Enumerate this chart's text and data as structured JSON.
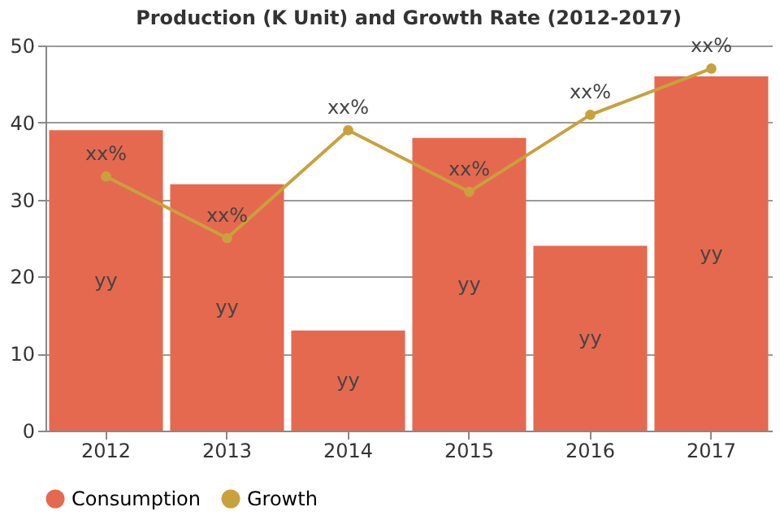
{
  "chart_data": {
    "type": "bar",
    "title": "Production (K Unit) and Growth Rate (2012-2017)",
    "categories": [
      "2012",
      "2013",
      "2014",
      "2015",
      "2016",
      "2017"
    ],
    "series": [
      {
        "name": "Consumption",
        "color": "#e5694f",
        "values": [
          39,
          32,
          13,
          38,
          24,
          46
        ],
        "value_labels": [
          "yy",
          "yy",
          "yy",
          "yy",
          "yy",
          "yy"
        ]
      },
      {
        "name": "Growth",
        "type": "line",
        "color": "#c9a13c",
        "values": [
          33,
          25,
          39,
          31,
          41,
          47
        ],
        "value_labels": [
          "xx%",
          "xx%",
          "xx%",
          "xx%",
          "xx%",
          "xx%"
        ],
        "marker": "circle",
        "line_style": "solid"
      }
    ],
    "ylim": [
      0,
      50
    ],
    "yticks": [
      0,
      10,
      20,
      30,
      40,
      50
    ],
    "grid": "y",
    "legend": "bottom"
  }
}
